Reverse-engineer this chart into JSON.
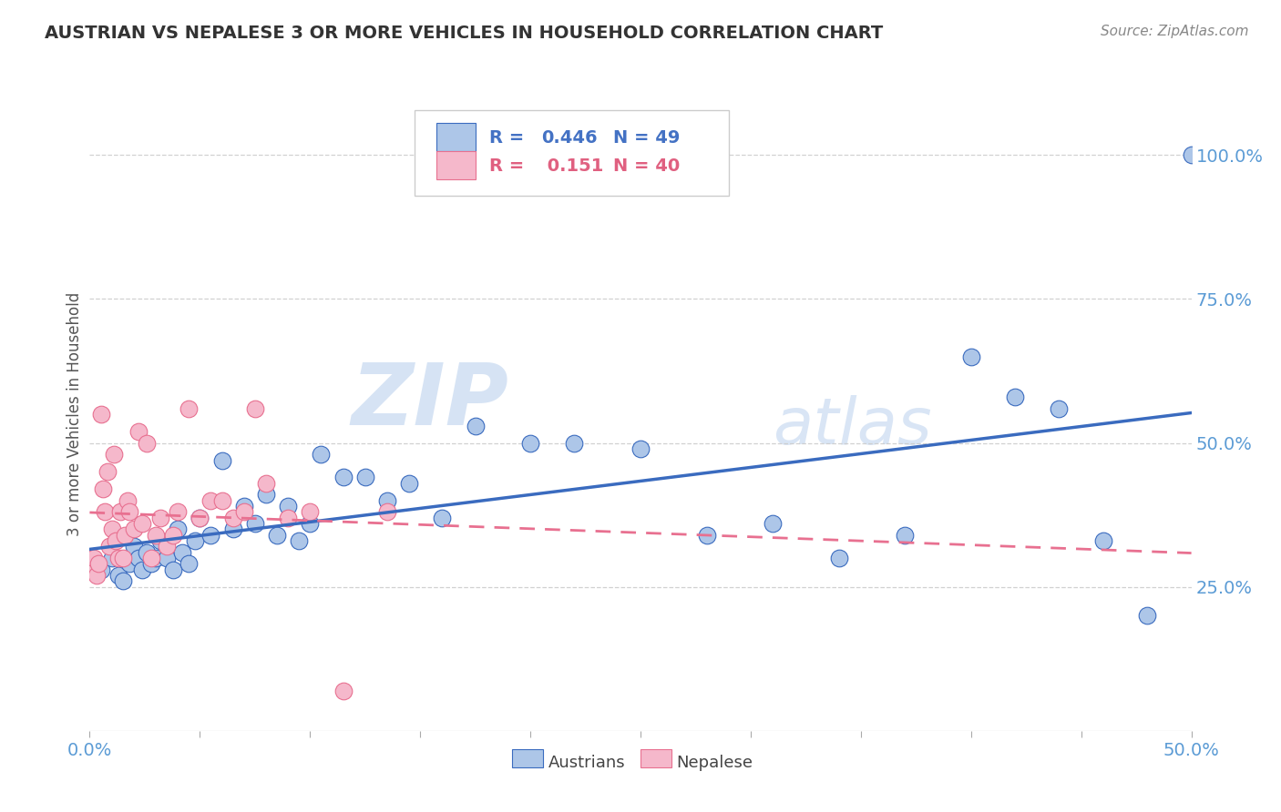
{
  "title": "AUSTRIAN VS NEPALESE 3 OR MORE VEHICLES IN HOUSEHOLD CORRELATION CHART",
  "source": "Source: ZipAtlas.com",
  "ylabel": "3 or more Vehicles in Household",
  "yaxis_labels": [
    "25.0%",
    "50.0%",
    "75.0%",
    "100.0%"
  ],
  "yaxis_values": [
    0.25,
    0.5,
    0.75,
    1.0
  ],
  "xlim": [
    0.0,
    0.5
  ],
  "ylim": [
    0.0,
    1.1
  ],
  "legend_r_austrians": "R = 0.446",
  "legend_n_austrians": "N = 49",
  "legend_r_nepalese": "R =  0.151",
  "legend_n_nepalese": "N = 40",
  "austrians_color": "#adc6e8",
  "nepalese_color": "#f5b8cb",
  "regression_line_austrians_color": "#3a6bbf",
  "regression_line_nepalese_color": "#e87090",
  "watermark_zip": "ZIP",
  "watermark_atlas": "atlas",
  "austrians_x": [
    0.005,
    0.01,
    0.013,
    0.015,
    0.018,
    0.02,
    0.022,
    0.024,
    0.026,
    0.028,
    0.03,
    0.032,
    0.035,
    0.038,
    0.04,
    0.042,
    0.045,
    0.048,
    0.05,
    0.055,
    0.06,
    0.065,
    0.07,
    0.075,
    0.08,
    0.085,
    0.09,
    0.095,
    0.1,
    0.105,
    0.115,
    0.125,
    0.135,
    0.145,
    0.16,
    0.175,
    0.2,
    0.22,
    0.25,
    0.28,
    0.31,
    0.34,
    0.37,
    0.4,
    0.42,
    0.44,
    0.46,
    0.48,
    0.5
  ],
  "austrians_y": [
    0.28,
    0.3,
    0.27,
    0.26,
    0.29,
    0.32,
    0.3,
    0.28,
    0.31,
    0.29,
    0.3,
    0.33,
    0.3,
    0.28,
    0.35,
    0.31,
    0.29,
    0.33,
    0.37,
    0.34,
    0.47,
    0.35,
    0.39,
    0.36,
    0.41,
    0.34,
    0.39,
    0.33,
    0.36,
    0.48,
    0.44,
    0.44,
    0.4,
    0.43,
    0.37,
    0.53,
    0.5,
    0.5,
    0.49,
    0.34,
    0.36,
    0.3,
    0.34,
    0.65,
    0.58,
    0.56,
    0.33,
    0.2,
    1.0
  ],
  "nepalese_x": [
    0.001,
    0.002,
    0.003,
    0.004,
    0.005,
    0.006,
    0.007,
    0.008,
    0.009,
    0.01,
    0.011,
    0.012,
    0.013,
    0.014,
    0.015,
    0.016,
    0.017,
    0.018,
    0.02,
    0.022,
    0.024,
    0.026,
    0.028,
    0.03,
    0.032,
    0.035,
    0.038,
    0.04,
    0.045,
    0.05,
    0.055,
    0.06,
    0.065,
    0.07,
    0.075,
    0.08,
    0.09,
    0.1,
    0.115,
    0.135
  ],
  "nepalese_y": [
    0.28,
    0.3,
    0.27,
    0.29,
    0.55,
    0.42,
    0.38,
    0.45,
    0.32,
    0.35,
    0.48,
    0.33,
    0.3,
    0.38,
    0.3,
    0.34,
    0.4,
    0.38,
    0.35,
    0.52,
    0.36,
    0.5,
    0.3,
    0.34,
    0.37,
    0.32,
    0.34,
    0.38,
    0.56,
    0.37,
    0.4,
    0.4,
    0.37,
    0.38,
    0.56,
    0.43,
    0.37,
    0.38,
    0.07,
    0.38
  ]
}
